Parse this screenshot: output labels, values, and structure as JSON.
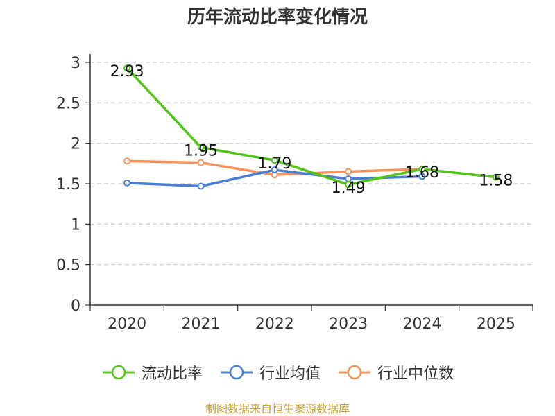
{
  "chart_data": {
    "type": "line",
    "title": "历年流动比率变化情况",
    "categories": [
      "2020",
      "2021",
      "2022",
      "2023",
      "2024",
      "2025"
    ],
    "yticks": [
      "0",
      "0.5",
      "1",
      "1.5",
      "2",
      "2.5",
      "3"
    ],
    "ylim": [
      0,
      3
    ],
    "grid": true,
    "legend_position": "bottom",
    "series": [
      {
        "name": "流动比率",
        "color": "#52c41a",
        "values": [
          2.93,
          1.95,
          1.79,
          1.49,
          1.68,
          1.58
        ],
        "labels": [
          "2.93",
          "1.95",
          "1.79",
          "1.49",
          "1.68",
          "1.58"
        ]
      },
      {
        "name": "行业均值",
        "color": "#4a7fd6",
        "values": [
          1.51,
          1.47,
          1.67,
          1.56,
          1.59,
          null
        ]
      },
      {
        "name": "行业中位数",
        "color": "#f4935a",
        "values": [
          1.78,
          1.76,
          1.61,
          1.65,
          1.68,
          null
        ]
      }
    ]
  },
  "source": "制图数据来自恒生聚源数据库"
}
